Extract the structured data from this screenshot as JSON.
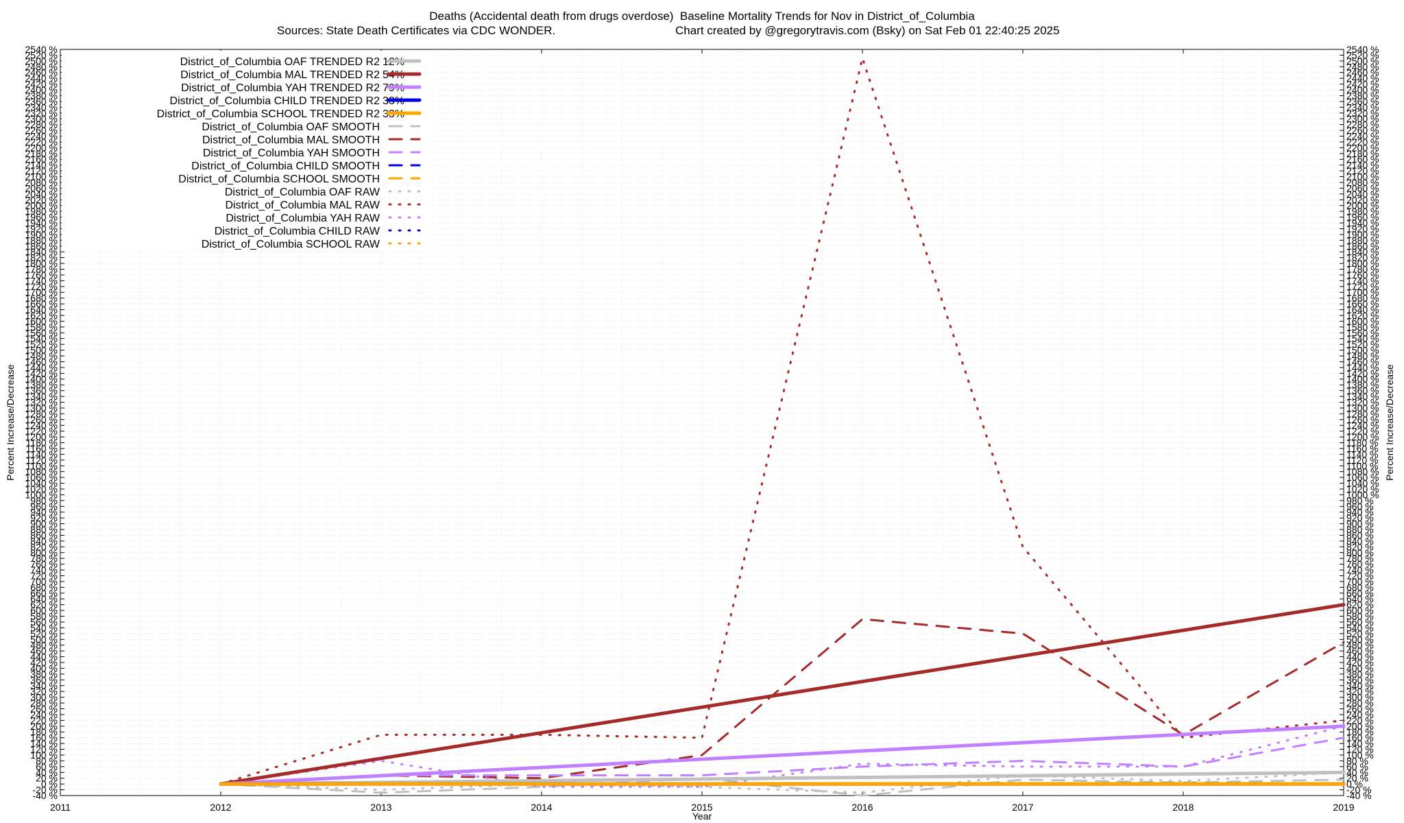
{
  "title_line1": "Deaths (Accidental death from drugs overdose)  Baseline Mortality Trends for Nov in District_of_Columbia",
  "title_line2_left": "Sources: State Death Certificates via CDC WONDER.",
  "title_line2_right": "Chart created by @gregorytravis.com (Bsky) on Sat Feb 01 22:40:25 2025",
  "chart_data": {
    "type": "line",
    "xlabel": "Year",
    "ylabel": "Percent Increase/Decrease",
    "y2label": "Percent Increase/Decrease",
    "xlim": [
      2011,
      2019
    ],
    "x_ticks": [
      "2011",
      "2012",
      "2013",
      "2014",
      "2015",
      "2016",
      "2017",
      "2018",
      "2019"
    ],
    "ylim": [
      -40,
      2540
    ],
    "y_tick_step": 20,
    "y_tick_suffix": " %",
    "grid": true,
    "legend_position": "top-left",
    "series": [
      {
        "name": "District_of_Columbia OAF TRENDED R2",
        "r2": "12%",
        "color": "#c0c0c0",
        "style": "solid",
        "x": [
          2012,
          2019
        ],
        "y": [
          0,
          40
        ]
      },
      {
        "name": "District_of_Columbia MAL TRENDED R2",
        "r2": "54%",
        "color": "#a52a2a",
        "style": "solid",
        "x": [
          2012,
          2019
        ],
        "y": [
          0,
          620
        ]
      },
      {
        "name": "District_of_Columbia YAH TRENDED R2",
        "r2": "79%",
        "color": "#c080ff",
        "style": "solid",
        "x": [
          2012,
          2019
        ],
        "y": [
          0,
          200
        ]
      },
      {
        "name": "District_of_Columbia CHILD TRENDED R2",
        "r2": "33%",
        "color": "#0000dd",
        "style": "solid",
        "x": [
          2012,
          2019
        ],
        "y": [
          0,
          0
        ]
      },
      {
        "name": "District_of_Columbia SCHOOL TRENDED R2",
        "r2": "33%",
        "color": "#ffa500",
        "style": "solid",
        "x": [
          2012,
          2019
        ],
        "y": [
          0,
          0
        ]
      },
      {
        "name": "District_of_Columbia OAF SMOOTH",
        "color": "#c0c0c0",
        "style": "dashed",
        "x": [
          2012,
          2013,
          2014,
          2015,
          2016,
          2017,
          2018,
          2019
        ],
        "y": [
          0,
          -30,
          -10,
          20,
          -40,
          15,
          5,
          15
        ]
      },
      {
        "name": "District_of_Columbia MAL SMOOTH",
        "color": "#a52a2a",
        "style": "dashed",
        "x": [
          2012,
          2013,
          2014,
          2015,
          2016,
          2017,
          2018,
          2019
        ],
        "y": [
          0,
          30,
          20,
          100,
          570,
          520,
          170,
          490
        ]
      },
      {
        "name": "District_of_Columbia YAH SMOOTH",
        "color": "#c080ff",
        "style": "dashed",
        "x": [
          2012,
          2013,
          2014,
          2015,
          2016,
          2017,
          2018,
          2019
        ],
        "y": [
          0,
          30,
          30,
          30,
          60,
          80,
          60,
          160
        ]
      },
      {
        "name": "District_of_Columbia CHILD SMOOTH",
        "color": "#0000dd",
        "style": "dashed",
        "x": [
          2012,
          2019
        ],
        "y": [
          0,
          0
        ]
      },
      {
        "name": "District_of_Columbia SCHOOL SMOOTH",
        "color": "#ffa500",
        "style": "dashed",
        "x": [
          2012,
          2019
        ],
        "y": [
          0,
          0
        ]
      },
      {
        "name": "District_of_Columbia OAF RAW",
        "color": "#c0c0c0",
        "style": "dotted",
        "x": [
          2012,
          2013,
          2014,
          2015,
          2016,
          2017,
          2018,
          2019
        ],
        "y": [
          0,
          -20,
          0,
          -10,
          -30,
          30,
          10,
          40
        ]
      },
      {
        "name": "District_of_Columbia MAL RAW",
        "color": "#a52a2a",
        "style": "dotted",
        "x": [
          2012,
          2013,
          2014,
          2015,
          2016,
          2017,
          2018,
          2019
        ],
        "y": [
          0,
          170,
          170,
          160,
          2510,
          820,
          160,
          220
        ]
      },
      {
        "name": "District_of_Columbia YAH RAW",
        "color": "#c080ff",
        "style": "dotted",
        "x": [
          2012,
          2013,
          2014,
          2015,
          2016,
          2017,
          2018,
          2019
        ],
        "y": [
          0,
          80,
          -10,
          -10,
          70,
          60,
          60,
          200
        ]
      },
      {
        "name": "District_of_Columbia CHILD RAW",
        "color": "#0000dd",
        "style": "dotted",
        "x": [
          2012,
          2019
        ],
        "y": [
          0,
          0
        ]
      },
      {
        "name": "District_of_Columbia SCHOOL RAW",
        "color": "#ffa500",
        "style": "dotted",
        "x": [
          2012,
          2019
        ],
        "y": [
          0,
          0
        ]
      }
    ]
  }
}
